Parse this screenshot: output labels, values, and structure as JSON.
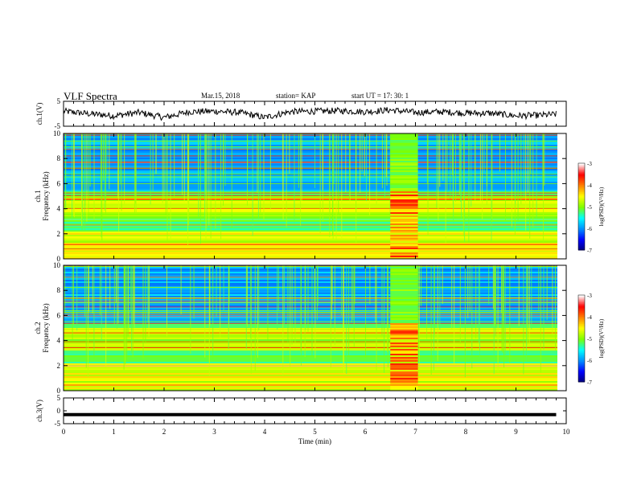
{
  "header": {
    "title": "VLF Spectra",
    "date": "Mar.15, 2018",
    "station": "station= KAP",
    "start": "start  UT  =   17: 30: 1"
  },
  "chart_data": [
    {
      "type": "line",
      "panel": "ch.1(V)",
      "ylabel": "ch.1(V)",
      "ylim": [
        -5,
        5
      ],
      "yticks": [
        "5",
        "-5"
      ],
      "x": [
        0,
        0.5,
        1,
        1.5,
        2,
        2.5,
        3,
        3.5,
        4,
        4.5,
        5,
        5.5,
        6,
        6.5,
        7,
        7.5,
        8,
        8.5,
        9,
        9.5,
        9.8
      ],
      "values": [
        1,
        0,
        -0.8,
        0.5,
        -1.5,
        0.8,
        1,
        0.5,
        -1.5,
        0.8,
        1,
        1.2,
        0.8,
        1.5,
        0.5,
        0.8,
        0.3,
        0.2,
        -0.8,
        -0.6,
        -0.2
      ],
      "xlim": [
        0,
        10
      ]
    },
    {
      "type": "heatmap",
      "panel": "ch.1 spectrogram",
      "ylabel": "ch.1 Frequency (kHz)",
      "ylim": [
        0,
        10
      ],
      "yticks": [
        "0",
        "2",
        "4",
        "6",
        "8",
        "10"
      ],
      "xlim": [
        0,
        10
      ],
      "colorbar": {
        "label": "log(PSD)(V²/Hz)",
        "range": [
          -7,
          -3
        ],
        "ticks": [
          "-3",
          "-4",
          "-5",
          "-6",
          "-7"
        ]
      },
      "event_interval_min": [
        6.5,
        7.05
      ]
    },
    {
      "type": "heatmap",
      "panel": "ch.2 spectrogram",
      "ylabel": "ch.2 Frequency (kHz)",
      "ylim": [
        0,
        10
      ],
      "yticks": [
        "0",
        "2",
        "4",
        "6",
        "8",
        "10"
      ],
      "xlim": [
        0,
        10
      ],
      "colorbar": {
        "label": "log(PSD)(V²/Hz)",
        "range": [
          -7,
          -3
        ],
        "ticks": [
          "-3",
          "-4",
          "-5",
          "-6",
          "-7"
        ]
      },
      "event_interval_min": [
        6.5,
        7.05
      ]
    },
    {
      "type": "line",
      "panel": "ch.3(V)",
      "ylabel": "ch.3(V)",
      "ylim": [
        -5,
        5
      ],
      "yticks": [
        "5",
        "0",
        "-5"
      ],
      "x": [
        0,
        9.8
      ],
      "values": [
        -1.5,
        -1.5
      ],
      "xlim": [
        0,
        10
      ]
    }
  ],
  "xaxis": {
    "label": "Time (min)",
    "ticks": [
      "0",
      "1",
      "2",
      "3",
      "4",
      "5",
      "6",
      "7",
      "8",
      "9",
      "10"
    ]
  },
  "colors": {
    "axes": "#000000",
    "colormap": [
      "#00007a",
      "#0000ff",
      "#0090ff",
      "#00ffff",
      "#7fff00",
      "#ffff00",
      "#ff8000",
      "#ff0000",
      "#ffffff"
    ]
  }
}
